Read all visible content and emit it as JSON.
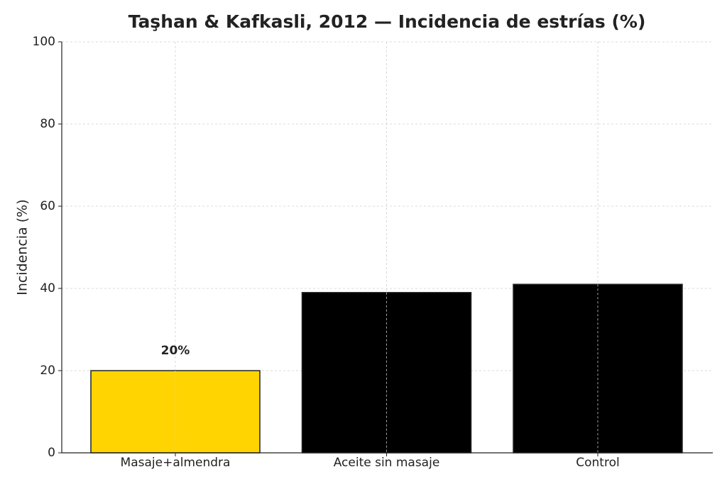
{
  "chart_data": {
    "type": "bar",
    "title": "Taşhan & Kafkasli, 2012 — Incidencia de estrías (%)",
    "y_label": "Incidencia (%)",
    "categories": [
      "Masaje+almendra",
      "Aceite sin masaje",
      "Control"
    ],
    "values": [
      20,
      39,
      41
    ],
    "value_labels": [
      "20%",
      null,
      null
    ],
    "colors": [
      "#FFD400",
      "#000000",
      "#000000"
    ],
    "ylim": [
      0,
      100
    ],
    "yticks": [
      0,
      20,
      40,
      60,
      80,
      100
    ],
    "grid": true
  }
}
